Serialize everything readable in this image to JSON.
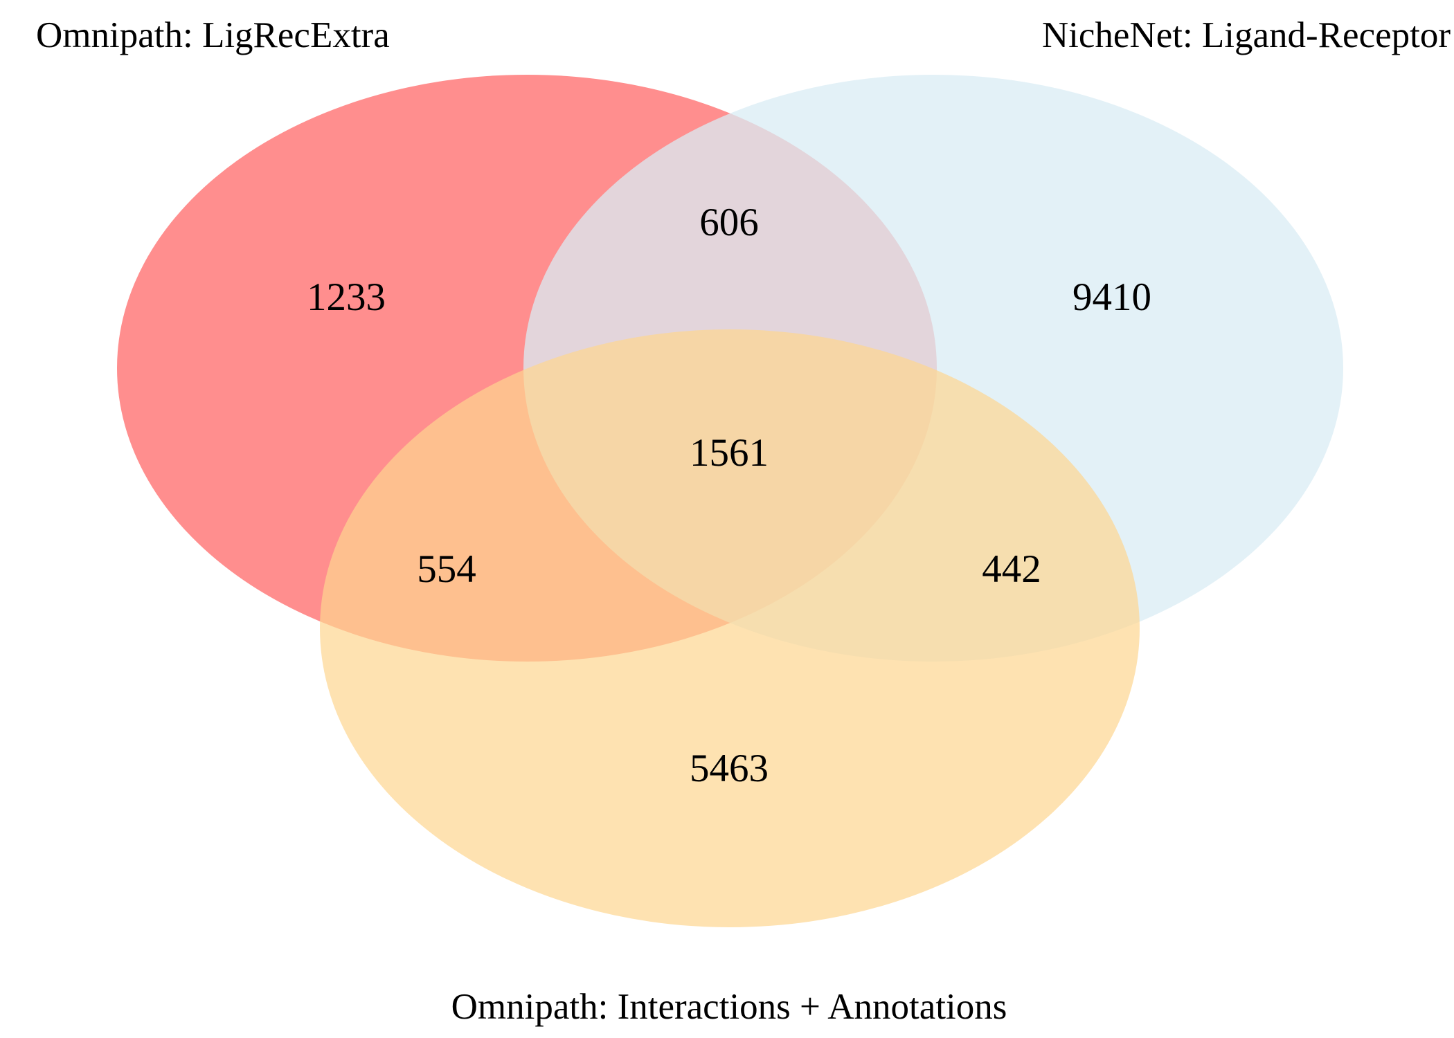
{
  "sets": [
    {
      "id": "A",
      "label": "Omnipath: LigRecExtra",
      "color": "#ff8e8e"
    },
    {
      "id": "B",
      "label": "NicheNet: Ligand-Receptor",
      "color": "#d9ecf4"
    },
    {
      "id": "C",
      "label": "Omnipath: Interactions + Annotations",
      "color": "#fdd690"
    }
  ],
  "regions": {
    "A_only": "1233",
    "B_only": "9410",
    "C_only": "5463",
    "AB": "606",
    "AC": "554",
    "BC": "442",
    "ABC": "1561"
  }
}
